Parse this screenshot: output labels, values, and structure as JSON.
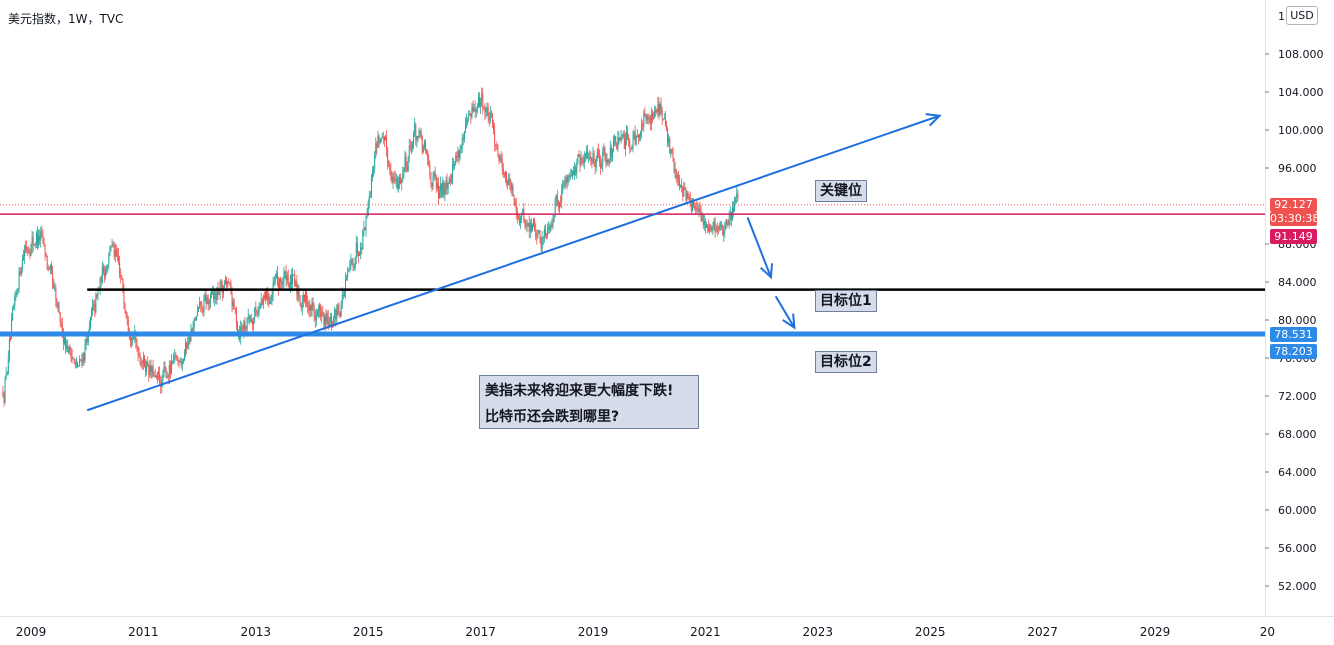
{
  "chart_title": "美元指数，1W，TVC",
  "currency": "USD",
  "colors": {
    "up": "#26a69a",
    "down": "#ef5350",
    "trend": "#1e6fe0",
    "black": "#000000",
    "blue_line": "#2e8ae6",
    "pink_line": "#d81b60",
    "price_red": "#f0524f"
  },
  "chart_data": {
    "type": "candlestick",
    "y_axis": {
      "ticks": [
        "108.000",
        "104.000",
        "100.000",
        "96.000",
        "88.000",
        "84.000",
        "80.000",
        "76.000",
        "72.000",
        "68.000",
        "64.000",
        "60.000",
        "56.000",
        "52.000"
      ],
      "top_tick": "11",
      "range": [
        48.5,
        112
      ]
    },
    "x_axis": {
      "ticks": [
        "2009",
        "2011",
        "2013",
        "2015",
        "2017",
        "2019",
        "2021",
        "2023",
        "2025",
        "2027",
        "2029",
        "20"
      ],
      "range": [
        "2008-07",
        "2030-10"
      ]
    },
    "price_path": [
      {
        "x": "2008-07",
        "y": 72.3
      },
      {
        "x": "2008-11",
        "y": 87.5
      },
      {
        "x": "2009-03",
        "y": 89.0
      },
      {
        "x": "2009-07",
        "y": 79.5
      },
      {
        "x": "2009-11",
        "y": 74.5
      },
      {
        "x": "2010-06",
        "y": 88.5
      },
      {
        "x": "2010-11",
        "y": 77.5
      },
      {
        "x": "2011-04",
        "y": 73.0
      },
      {
        "x": "2011-09",
        "y": 76.5
      },
      {
        "x": "2012-01",
        "y": 81.0
      },
      {
        "x": "2012-07",
        "y": 84.0
      },
      {
        "x": "2012-09",
        "y": 79.0
      },
      {
        "x": "2013-07",
        "y": 84.5
      },
      {
        "x": "2014-05",
        "y": 79.0
      },
      {
        "x": "2014-12",
        "y": 90.0
      },
      {
        "x": "2015-03",
        "y": 100.0
      },
      {
        "x": "2015-07",
        "y": 94.0
      },
      {
        "x": "2015-11",
        "y": 100.0
      },
      {
        "x": "2016-04",
        "y": 93.0
      },
      {
        "x": "2016-11",
        "y": 101.5
      },
      {
        "x": "2017-01",
        "y": 103.5
      },
      {
        "x": "2017-09",
        "y": 91.0
      },
      {
        "x": "2018-02",
        "y": 88.5
      },
      {
        "x": "2018-08",
        "y": 96.0
      },
      {
        "x": "2019-09",
        "y": 99.0
      },
      {
        "x": "2020-03",
        "y": 102.8
      },
      {
        "x": "2020-06",
        "y": 96.0
      },
      {
        "x": "2020-12",
        "y": 90.0
      },
      {
        "x": "2021-05",
        "y": 89.8
      },
      {
        "x": "2021-08",
        "y": 93.0
      }
    ],
    "horizontal_lines": [
      {
        "name": "key-level",
        "value": 91.149,
        "color": "#d81b60"
      },
      {
        "name": "target-1",
        "value": 83.2,
        "color": "#000000"
      },
      {
        "name": "target-2",
        "value": 78.531,
        "color": "#2e8ae6"
      }
    ],
    "trend_line": {
      "from": {
        "x": "2010-01",
        "y": 70.5
      },
      "to": {
        "x": "2025-03",
        "y": 101.5
      }
    },
    "down_arrows": [
      {
        "from": {
          "x": "2021-10",
          "y": 90.8
        },
        "to": {
          "x": "2022-03",
          "y": 84.5
        }
      },
      {
        "from": {
          "x": "2022-04",
          "y": 82.5
        },
        "to": {
          "x": "2022-08",
          "y": 79.2
        }
      }
    ],
    "price_labels": [
      {
        "text": "92.127",
        "bg": "#f0524f"
      },
      {
        "text": "03:30:38",
        "bg": "#f0524f"
      },
      {
        "text": "91.149",
        "bg": "#d81b60"
      },
      {
        "text": "78.531",
        "bg": "#2e8ae6"
      },
      {
        "text": "78.203",
        "bg": "#2e8ae6"
      }
    ],
    "annotations": {
      "key": "关键位",
      "target1": "目标位1",
      "target2": "目标位2",
      "note_line1": "美指未来将迎来更大幅度下跌!",
      "note_line2": "比特币还会跌到哪里?"
    }
  }
}
